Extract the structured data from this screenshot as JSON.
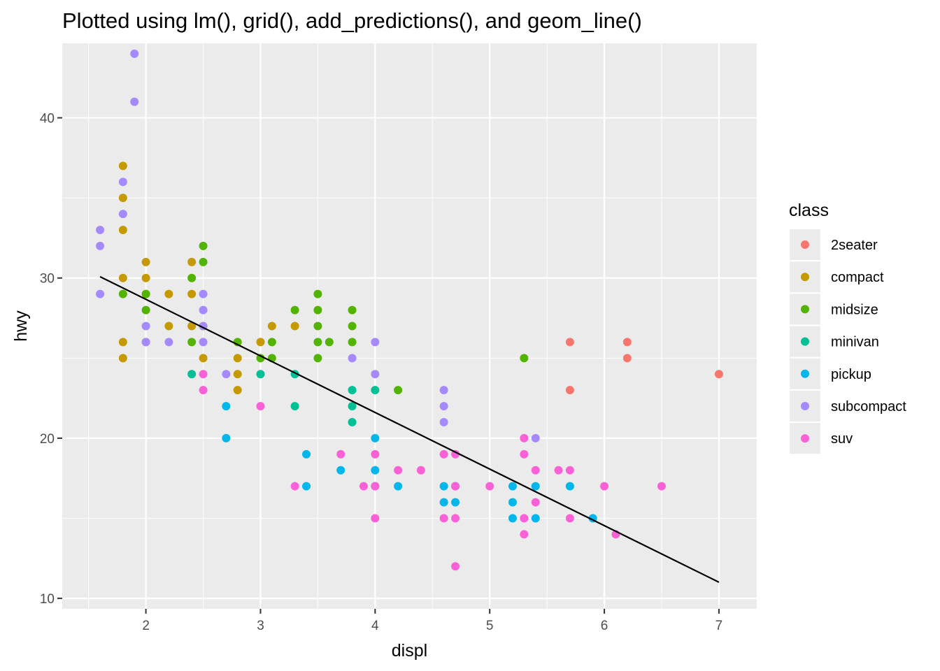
{
  "chart_data": {
    "type": "scatter",
    "title": "Plotted using lm(), grid(), add_predictions(), and geom_line()",
    "xlabel": "displ",
    "ylabel": "hwy",
    "xlim": [
      1.27,
      7.33
    ],
    "ylim": [
      9.35,
      44.65
    ],
    "x_ticks": [
      2,
      3,
      4,
      5,
      6,
      7
    ],
    "y_ticks": [
      10,
      20,
      30,
      40
    ],
    "grid": true,
    "legend": {
      "title": "class",
      "placement": "right"
    },
    "series": [
      {
        "name": "2seater",
        "color": "#F8766D",
        "points": [
          [
            5.7,
            26
          ],
          [
            5.7,
            23
          ],
          [
            6.2,
            26
          ],
          [
            6.2,
            25
          ],
          [
            7.0,
            24
          ]
        ]
      },
      {
        "name": "compact",
        "color": "#C49A00",
        "points": [
          [
            1.8,
            37
          ],
          [
            1.8,
            35
          ],
          [
            1.8,
            33
          ],
          [
            1.8,
            30
          ],
          [
            1.8,
            26
          ],
          [
            1.8,
            25
          ],
          [
            2.0,
            31
          ],
          [
            2.0,
            30
          ],
          [
            2.0,
            29
          ],
          [
            2.0,
            26
          ],
          [
            2.2,
            29
          ],
          [
            2.2,
            27
          ],
          [
            2.4,
            31
          ],
          [
            2.4,
            29
          ],
          [
            2.4,
            27
          ],
          [
            2.5,
            27
          ],
          [
            2.5,
            25
          ],
          [
            2.8,
            25
          ],
          [
            2.8,
            24
          ],
          [
            2.8,
            23
          ],
          [
            3.0,
            26
          ],
          [
            3.1,
            27
          ],
          [
            3.3,
            27
          ]
        ]
      },
      {
        "name": "midsize",
        "color": "#53B400",
        "points": [
          [
            1.8,
            29
          ],
          [
            2.0,
            29
          ],
          [
            2.0,
            28
          ],
          [
            2.4,
            30
          ],
          [
            2.4,
            26
          ],
          [
            2.5,
            32
          ],
          [
            2.5,
            31
          ],
          [
            2.8,
            26
          ],
          [
            3.0,
            25
          ],
          [
            3.1,
            26
          ],
          [
            3.1,
            25
          ],
          [
            3.3,
            28
          ],
          [
            3.5,
            29
          ],
          [
            3.5,
            28
          ],
          [
            3.5,
            27
          ],
          [
            3.5,
            26
          ],
          [
            3.5,
            25
          ],
          [
            3.6,
            26
          ],
          [
            3.8,
            28
          ],
          [
            3.8,
            27
          ],
          [
            3.8,
            26
          ],
          [
            4.2,
            23
          ],
          [
            5.3,
            25
          ]
        ]
      },
      {
        "name": "minivan",
        "color": "#00C094",
        "points": [
          [
            2.4,
            24
          ],
          [
            3.0,
            24
          ],
          [
            3.3,
            24
          ],
          [
            3.3,
            22
          ],
          [
            3.8,
            23
          ],
          [
            3.8,
            22
          ],
          [
            3.8,
            21
          ],
          [
            4.0,
            23
          ]
        ]
      },
      {
        "name": "pickup",
        "color": "#00B6EB",
        "points": [
          [
            2.7,
            22
          ],
          [
            2.7,
            20
          ],
          [
            3.4,
            19
          ],
          [
            3.4,
            17
          ],
          [
            3.7,
            18
          ],
          [
            4.0,
            20
          ],
          [
            4.0,
            18
          ],
          [
            4.0,
            17
          ],
          [
            4.2,
            17
          ],
          [
            4.6,
            17
          ],
          [
            4.6,
            16
          ],
          [
            4.7,
            17
          ],
          [
            4.7,
            16
          ],
          [
            5.2,
            17
          ],
          [
            5.2,
            16
          ],
          [
            5.2,
            15
          ],
          [
            5.4,
            17
          ],
          [
            5.4,
            15
          ],
          [
            5.7,
            17
          ],
          [
            5.9,
            15
          ]
        ]
      },
      {
        "name": "subcompact",
        "color": "#A58AFF",
        "points": [
          [
            1.6,
            33
          ],
          [
            1.6,
            32
          ],
          [
            1.6,
            29
          ],
          [
            1.8,
            36
          ],
          [
            1.8,
            34
          ],
          [
            1.9,
            44
          ],
          [
            1.9,
            41
          ],
          [
            2.0,
            27
          ],
          [
            2.0,
            26
          ],
          [
            2.2,
            26
          ],
          [
            2.5,
            29
          ],
          [
            2.5,
            28
          ],
          [
            2.5,
            27
          ],
          [
            2.5,
            26
          ],
          [
            2.7,
            24
          ],
          [
            3.8,
            25
          ],
          [
            4.0,
            26
          ],
          [
            4.0,
            24
          ],
          [
            4.6,
            23
          ],
          [
            4.6,
            22
          ],
          [
            4.6,
            21
          ],
          [
            5.4,
            20
          ]
        ]
      },
      {
        "name": "suv",
        "color": "#FB61D7",
        "points": [
          [
            2.5,
            24
          ],
          [
            2.5,
            23
          ],
          [
            3.0,
            22
          ],
          [
            3.3,
            17
          ],
          [
            3.7,
            19
          ],
          [
            3.9,
            17
          ],
          [
            4.0,
            19
          ],
          [
            4.0,
            17
          ],
          [
            4.0,
            15
          ],
          [
            4.2,
            18
          ],
          [
            4.4,
            18
          ],
          [
            4.6,
            19
          ],
          [
            4.6,
            15
          ],
          [
            4.7,
            19
          ],
          [
            4.7,
            17
          ],
          [
            4.7,
            15
          ],
          [
            4.7,
            12
          ],
          [
            5.0,
            17
          ],
          [
            5.3,
            20
          ],
          [
            5.3,
            19
          ],
          [
            5.3,
            15
          ],
          [
            5.3,
            14
          ],
          [
            5.4,
            18
          ],
          [
            5.4,
            16
          ],
          [
            5.6,
            18
          ],
          [
            5.7,
            18
          ],
          [
            5.7,
            15
          ],
          [
            6.0,
            17
          ],
          [
            6.1,
            14
          ],
          [
            6.5,
            17
          ]
        ]
      }
    ],
    "fit_line": {
      "type": "line",
      "color": "#000000",
      "x": [
        1.6,
        7.0
      ],
      "y": [
        30.08,
        11.01
      ]
    }
  }
}
